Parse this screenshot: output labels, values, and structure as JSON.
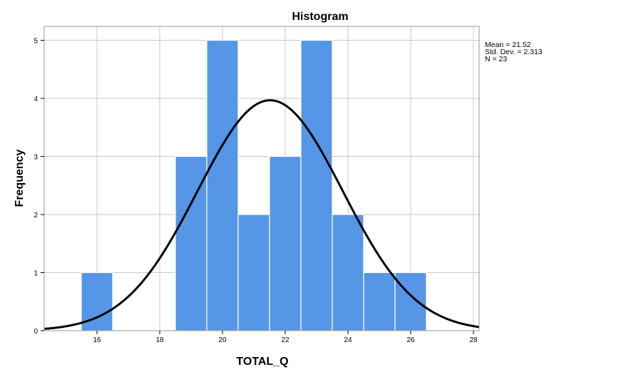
{
  "chart_data": {
    "type": "bar",
    "subtype": "histogram",
    "title": "Histogram",
    "xlabel": "TOTAL_Q",
    "ylabel": "Frequency",
    "xlim": [
      14.3,
      28.2
    ],
    "ylim": [
      0,
      5.3
    ],
    "xticks": [
      16,
      18,
      20,
      22,
      24,
      26,
      28
    ],
    "yticks": [
      0,
      1,
      2,
      3,
      4,
      5
    ],
    "grid": true,
    "bar_color": "#5596e6",
    "bins": [
      {
        "x0": 15.5,
        "x1": 16.5,
        "count": 1
      },
      {
        "x0": 18.5,
        "x1": 19.5,
        "count": 3
      },
      {
        "x0": 19.5,
        "x1": 20.5,
        "count": 5
      },
      {
        "x0": 20.5,
        "x1": 21.5,
        "count": 2
      },
      {
        "x0": 21.5,
        "x1": 22.5,
        "count": 3
      },
      {
        "x0": 22.5,
        "x1": 23.5,
        "count": 5
      },
      {
        "x0": 23.5,
        "x1": 24.5,
        "count": 2
      },
      {
        "x0": 24.5,
        "x1": 25.5,
        "count": 1
      },
      {
        "x0": 25.5,
        "x1": 26.5,
        "count": 1
      }
    ],
    "normal_curve": {
      "mean": 21.52,
      "sd": 2.313,
      "n": 23,
      "bin_width": 1
    },
    "stats_lines": [
      "Mean = 21.52",
      "Std. Dev. = 2.313",
      "N = 23"
    ]
  }
}
